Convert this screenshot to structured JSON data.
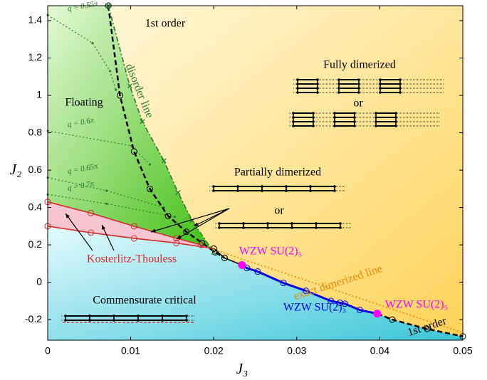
{
  "chart_data": {
    "type": "phase-diagram",
    "x_label": "J₃",
    "y_label": "J₂",
    "xlim": [
      0,
      0.05
    ],
    "ylim": [
      -0.31,
      1.48
    ],
    "xticks": [
      0,
      0.01,
      0.02,
      0.03,
      0.04,
      0.05
    ],
    "yticks": [
      -0.2,
      0,
      0.2,
      0.4,
      0.6,
      0.8,
      1,
      1.2,
      1.4
    ],
    "curves": [
      {
        "color": "#000000",
        "style": "dashed",
        "marker": "circle",
        "x": [
          0.0073,
          0.0087,
          0.0104,
          0.0123,
          0.0145,
          0.0167,
          0.0186,
          0.0202,
          0.0213
        ],
        "y": [
          1.48,
          1.0,
          0.7,
          0.5,
          0.355,
          0.27,
          0.21,
          0.16,
          0.13
        ]
      },
      {
        "color": "#2e7d32",
        "style": "dashdot",
        "marker": "cross",
        "x": [
          0.0073,
          0.0099,
          0.0114,
          0.014,
          0.0157,
          0.0174,
          0.02
        ],
        "y": [
          1.48,
          1.05,
          0.86,
          0.65,
          0.48,
          0.33,
          0.16
        ]
      },
      {
        "color": "#d32f2f",
        "style": "solid",
        "marker": "circle",
        "x": [
          0,
          0.0052,
          0.0104,
          0.0155,
          0.0185
        ],
        "y": [
          0.43,
          0.37,
          0.3,
          0.235,
          0.2
        ]
      },
      {
        "color": "#d32f2f",
        "style": "solid",
        "marker": "circle",
        "x": [
          0,
          0.0052,
          0.0104,
          0.0155,
          0.02
        ],
        "y": [
          0.3,
          0.265,
          0.235,
          0.21,
          0.18
        ]
      },
      {
        "color": "#000000",
        "style": "solid",
        "marker": "circle",
        "x": [
          0.02,
          0.0213,
          0.0234
        ],
        "y": [
          0.18,
          0.13,
          0.092
        ]
      },
      {
        "color": "#0000e0",
        "style": "solid",
        "marker": "circle",
        "x": [
          0.0234,
          0.024,
          0.0253,
          0.0284,
          0.0311,
          0.0341,
          0.0352,
          0.0358,
          0.0376,
          0.0397
        ],
        "y": [
          0.092,
          0.076,
          0.057,
          -0.004,
          -0.046,
          -0.1,
          -0.11,
          -0.115,
          -0.149,
          -0.168
        ]
      },
      {
        "color": "#000000",
        "style": "dashed",
        "marker": "circle",
        "x": [
          0.0397,
          0.0415,
          0.0457,
          0.05
        ],
        "y": [
          -0.168,
          -0.2,
          -0.25,
          -0.29
        ]
      },
      {
        "color": "#f08c00",
        "style": "dotted",
        "marker": "none",
        "x": [
          0.02,
          0.05
        ],
        "y": [
          0.175,
          -0.27
        ]
      }
    ],
    "q_lines": [
      {
        "label": "q = 0.55π",
        "color": "#2e7d32",
        "x": [
          0,
          0.0054,
          0.0075,
          0.0082
        ],
        "y": [
          1.43,
          1.28,
          1.13,
          1.03
        ]
      },
      {
        "label": "q = 0.6π",
        "color": "#2e7d32",
        "x": [
          0,
          0.0101,
          0.0123
        ],
        "y": [
          0.81,
          0.73,
          0.63
        ]
      },
      {
        "label": "q = 0.65π",
        "color": "#2e7d32",
        "x": [
          0,
          0.0071,
          0.014
        ],
        "y": [
          0.56,
          0.49,
          0.4
        ]
      },
      {
        "label": "q = 0.7π",
        "color": "#2e7d32",
        "x": [
          0,
          0.0071,
          0.0153
        ],
        "y": [
          0.47,
          0.42,
          0.35
        ]
      }
    ],
    "points": {
      "color": "#ff00ff",
      "x": [
        0.0234,
        0.0397
      ],
      "y": [
        0.092,
        -0.168
      ]
    },
    "annotations": [
      {
        "text": "1st order",
        "color": "#000000"
      },
      {
        "text": "disorder line",
        "color": "#2e7d32"
      },
      {
        "text": "Floating",
        "color": "#000000"
      },
      {
        "text": "Fully dimerized",
        "color": "#000000"
      },
      {
        "text": "or",
        "color": "#000000"
      },
      {
        "text": "Partially dimerized",
        "color": "#000000"
      },
      {
        "text": "or",
        "color": "#000000"
      },
      {
        "text": "Kosterlitz-Thouless",
        "color": "#d32f2f"
      },
      {
        "text": "WZW SU(2)₅",
        "color": "#ff00ff"
      },
      {
        "text": "exact dimerized line",
        "color": "#f08c00"
      },
      {
        "text": "WZW SU(2)₃",
        "color": "#0000e0"
      },
      {
        "text": "WZW SU(2)₅",
        "color": "#ff00ff"
      },
      {
        "text": "1st order",
        "color": "#000000"
      },
      {
        "text": "Commensurate critical",
        "color": "#000000"
      }
    ]
  }
}
